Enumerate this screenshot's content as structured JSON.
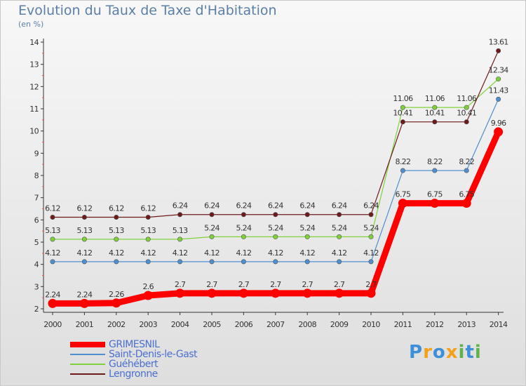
{
  "header": {
    "title": "Evolution du Taux de Taxe d'Habitation",
    "unit": "(en %)"
  },
  "brand": {
    "letters": [
      "P",
      "r",
      "o",
      "x",
      "i",
      "t",
      "i"
    ],
    "colors": [
      "#3d8fd8",
      "#f2a118",
      "#3d8fd8",
      "#f2a118",
      "#5fb34a",
      "#3d8fd8",
      "#5fb34a"
    ]
  },
  "chart_data": {
    "type": "line",
    "title": "Evolution du Taux de Taxe d'Habitation",
    "ylabel": "(en %)",
    "xlabel": "",
    "x": [
      "2000",
      "2001",
      "2002",
      "2003",
      "2004",
      "2005",
      "2006",
      "2007",
      "2008",
      "2009",
      "2010",
      "2011",
      "2012",
      "2013",
      "2014"
    ],
    "ylim": [
      2,
      14
    ],
    "yticks": [
      "2",
      "3",
      "4",
      "5",
      "6",
      "7",
      "8",
      "9",
      "10",
      "11",
      "12",
      "13",
      "14"
    ],
    "grid": false,
    "legend_position": "bottom-left",
    "series": [
      {
        "name": "GRIMESNIL",
        "color": "#ff0000",
        "emphasis": true,
        "values": [
          2.24,
          2.24,
          2.26,
          2.6,
          2.7,
          2.7,
          2.7,
          2.7,
          2.7,
          2.7,
          2.7,
          6.75,
          6.75,
          6.75,
          9.96
        ],
        "labels": [
          "2.24",
          "2.24",
          "2.26",
          "2.6",
          "2.7",
          "2.7",
          "2.7",
          "2.7",
          "2.7",
          "2.7",
          "2.7",
          "6.75",
          "6.75",
          "6.75",
          "9.96"
        ]
      },
      {
        "name": "Saint-Denis-le-Gast",
        "color": "#4f8fd0",
        "values": [
          4.12,
          4.12,
          4.12,
          4.12,
          4.12,
          4.12,
          4.12,
          4.12,
          4.12,
          4.12,
          4.12,
          8.22,
          8.22,
          8.22,
          11.43
        ],
        "labels": [
          "4.12",
          "4.12",
          "4.12",
          "4.12",
          "4.12",
          "4.12",
          "4.12",
          "4.12",
          "4.12",
          "4.12",
          "4.12",
          "8.22",
          "8.22",
          "8.22",
          "11.43"
        ]
      },
      {
        "name": "Guéhébert",
        "color": "#7fd13b",
        "values": [
          5.13,
          5.13,
          5.13,
          5.13,
          5.13,
          5.24,
          5.24,
          5.24,
          5.24,
          5.24,
          5.24,
          11.06,
          11.06,
          11.06,
          12.34
        ],
        "labels": [
          "5.13",
          "5.13",
          "5.13",
          "5.13",
          "5.13",
          "5.24",
          "5.24",
          "5.24",
          "5.24",
          "5.24",
          "5.24",
          "11.06",
          "11.06",
          "11.06",
          "12.34"
        ]
      },
      {
        "name": "Lengronne",
        "color": "#6e1a1a",
        "values": [
          6.12,
          6.12,
          6.12,
          6.12,
          6.24,
          6.24,
          6.24,
          6.24,
          6.24,
          6.24,
          6.24,
          10.41,
          10.41,
          10.41,
          13.61
        ],
        "labels": [
          "6.12",
          "6.12",
          "6.12",
          "6.12",
          "6.24",
          "6.24",
          "6.24",
          "6.24",
          "6.24",
          "6.24",
          "6.24",
          "10.41",
          "10.41",
          "10.41",
          "13.61"
        ]
      }
    ]
  }
}
